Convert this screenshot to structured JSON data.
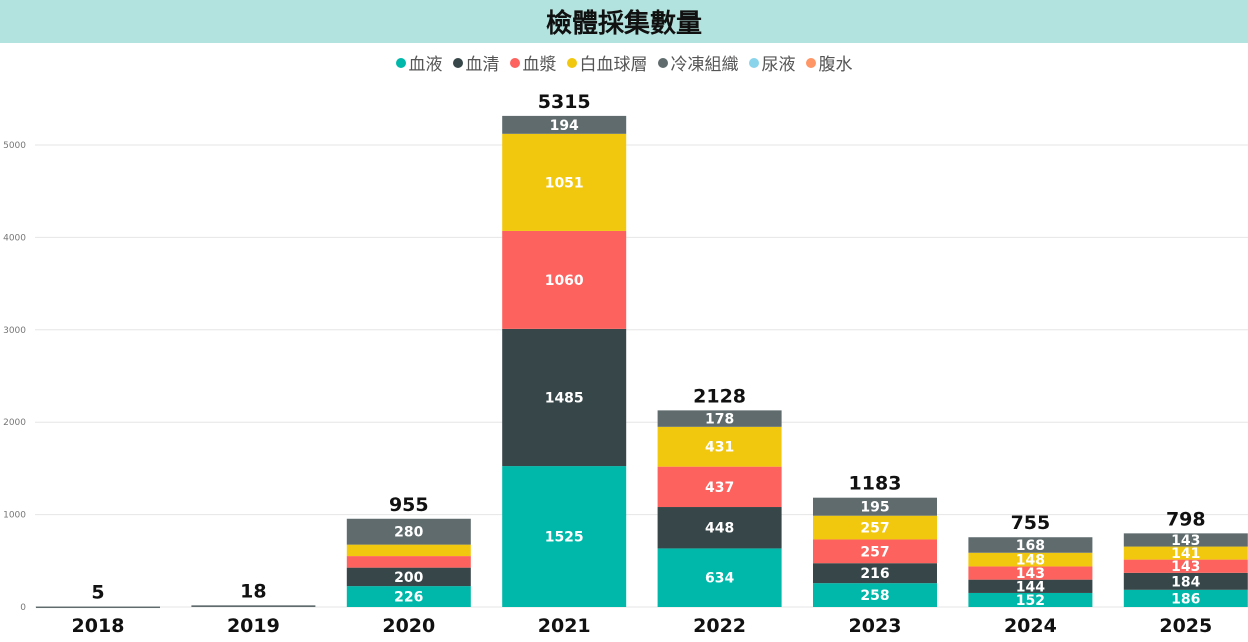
{
  "chart_data": {
    "type": "bar",
    "stacked": true,
    "title": "檢體採集數量",
    "categories": [
      "2018",
      "2019",
      "2020",
      "2021",
      "2022",
      "2023",
      "2024",
      "2025"
    ],
    "totals": [
      5,
      18,
      955,
      5315,
      2128,
      1183,
      755,
      798
    ],
    "series": [
      {
        "name": "血液",
        "color": "#00b8aa",
        "values": [
          0,
          0,
          226,
          1525,
          634,
          258,
          152,
          186
        ]
      },
      {
        "name": "血清",
        "color": "#374649",
        "values": [
          0,
          0,
          200,
          1485,
          448,
          216,
          144,
          184
        ]
      },
      {
        "name": "血漿",
        "color": "#fd625e",
        "values": [
          0,
          0,
          125,
          1060,
          437,
          257,
          143,
          143
        ]
      },
      {
        "name": "白血球層",
        "color": "#f2c80f",
        "values": [
          0,
          0,
          124,
          1051,
          431,
          257,
          148,
          141
        ]
      },
      {
        "name": "冷凍組織",
        "color": "#5f6b6d",
        "values": [
          5,
          18,
          280,
          194,
          178,
          195,
          168,
          143
        ]
      },
      {
        "name": "尿液",
        "color": "#8ad4eb",
        "values": [
          0,
          0,
          0,
          0,
          0,
          0,
          0,
          0
        ]
      },
      {
        "name": "腹水",
        "color": "#fe9666",
        "values": [
          0,
          0,
          0,
          0,
          0,
          0,
          0,
          0
        ]
      }
    ],
    "hidden_labels": {
      "2020": [
        "血漿",
        "白血球層"
      ]
    },
    "ylim": [
      0,
      5500
    ],
    "yticks": [
      0,
      1000,
      2000,
      3000,
      4000,
      5000
    ],
    "grid": true,
    "legend": "top-center"
  }
}
